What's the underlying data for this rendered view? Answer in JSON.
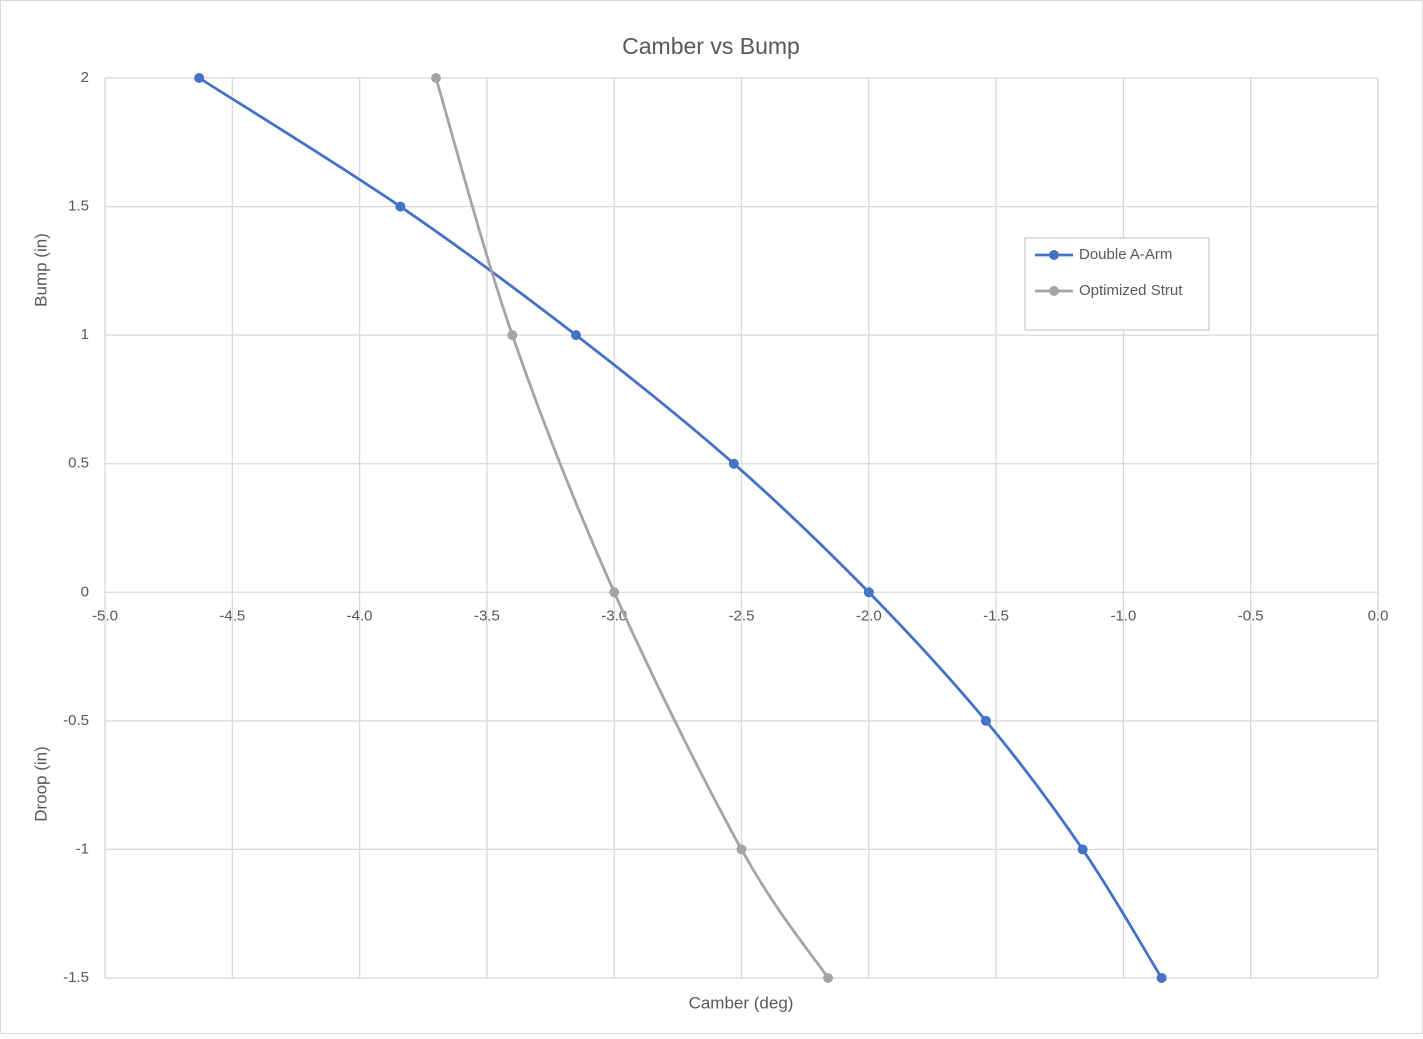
{
  "chart_data": {
    "type": "scatter-line",
    "title": "Camber vs Bump",
    "x_label": "Camber (deg)",
    "y_labels": [
      "Bump (in)",
      "Droop (in)"
    ],
    "xlim": [
      -5,
      0
    ],
    "xticks": [
      {
        "value": -5,
        "label": "-5.0"
      },
      {
        "value": -4.5,
        "label": "-4.5"
      },
      {
        "value": -4,
        "label": "-4.0"
      },
      {
        "value": -3.5,
        "label": "-3.5"
      },
      {
        "value": -3,
        "label": "-3.0"
      },
      {
        "value": -2.5,
        "label": "-2.5"
      },
      {
        "value": -2,
        "label": "-2.0"
      },
      {
        "value": -1.5,
        "label": "-1.5"
      },
      {
        "value": -1,
        "label": "-1.0"
      },
      {
        "value": -0.5,
        "label": "-0.5"
      },
      {
        "value": 0,
        "label": "0.0"
      }
    ],
    "ylim": [
      -1.5,
      2
    ],
    "yticks": [
      2,
      1.5,
      1,
      0.5,
      0,
      -0.5,
      -1,
      -1.5
    ],
    "grid": true,
    "legend_position": "upper right",
    "smooth": true,
    "series": [
      {
        "name": "Double A-Arm",
        "color": "#4472c4",
        "x": [
          -4.63,
          -3.84,
          -3.15,
          -2.53,
          -2.0,
          -1.54,
          -1.16,
          -0.85
        ],
        "values": [
          2,
          1.5,
          1,
          0.5,
          0,
          -0.5,
          -1,
          -1.5
        ]
      },
      {
        "name": "Optimized Strut",
        "color": "#a5a5a5",
        "x": [
          -3.7,
          -3.4,
          -3.0,
          -2.5,
          -2.16
        ],
        "values": [
          2,
          1,
          0,
          -1,
          -1.5
        ]
      }
    ]
  }
}
